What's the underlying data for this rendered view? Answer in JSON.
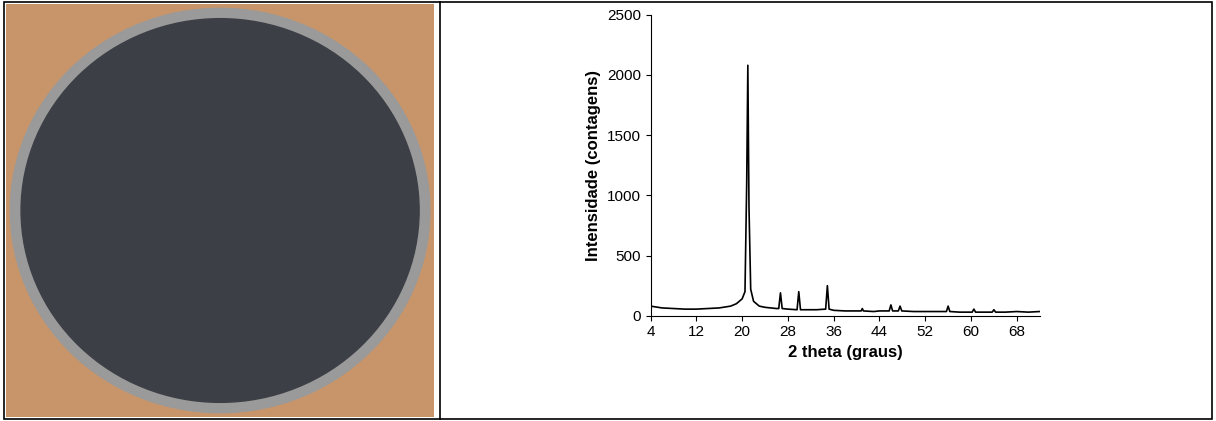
{
  "chart_data": {
    "type": "line",
    "x_label": "2 theta (graus)",
    "y_label": "Intensidade (contagens)",
    "x": [
      4,
      6,
      8,
      10,
      12,
      14,
      16,
      18,
      19,
      20,
      20.5,
      20.8,
      21.0,
      21.2,
      21.5,
      22,
      23,
      24,
      26,
      26.4,
      26.7,
      27.0,
      28,
      29.6,
      29.9,
      30.2,
      31,
      33,
      34.6,
      34.9,
      35.2,
      36,
      38,
      40,
      40.8,
      41,
      41.2,
      43,
      44,
      45.7,
      46,
      46.3,
      47.3,
      47.6,
      47.9,
      50,
      52,
      55.7,
      56,
      56.3,
      58,
      60.2,
      60.5,
      60.8,
      62,
      63.7,
      64,
      64.3,
      66,
      68,
      70,
      72
    ],
    "values": [
      80,
      65,
      60,
      55,
      55,
      60,
      65,
      80,
      100,
      140,
      200,
      1100,
      2080,
      900,
      220,
      120,
      80,
      70,
      60,
      60,
      190,
      60,
      55,
      50,
      200,
      50,
      50,
      50,
      55,
      250,
      55,
      45,
      40,
      40,
      40,
      60,
      40,
      35,
      40,
      40,
      90,
      40,
      40,
      80,
      40,
      35,
      35,
      35,
      80,
      35,
      30,
      30,
      55,
      30,
      30,
      30,
      50,
      30,
      30,
      35,
      30,
      35
    ],
    "color": "#000000",
    "xlim": [
      4,
      72
    ],
    "xticks": [
      4,
      12,
      20,
      28,
      36,
      44,
      52,
      60,
      68
    ],
    "ylim": [
      0,
      2500
    ],
    "yticks": [
      0,
      500,
      1000,
      1500,
      2000,
      2500
    ],
    "grid": false
  }
}
